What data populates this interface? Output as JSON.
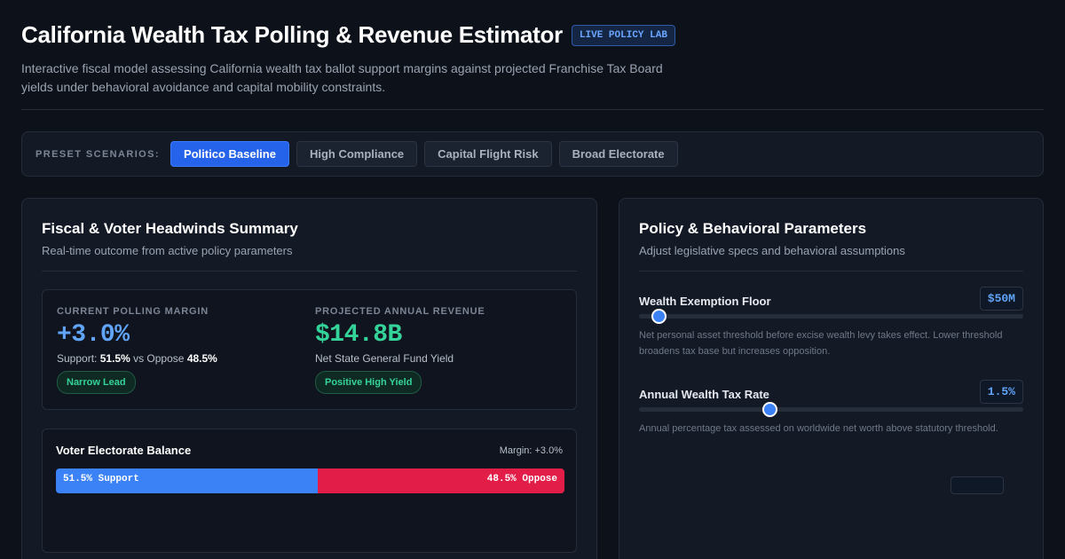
{
  "header": {
    "title": "California Wealth Tax Polling & Revenue Estimator",
    "badge": "LIVE POLICY LAB",
    "subtitle": "Interactive fiscal model assessing California wealth tax ballot support margins against projected Franchise Tax Board yields under behavioral avoidance and capital mobility constraints."
  },
  "presets": {
    "label": "PRESET SCENARIOS:",
    "items": [
      {
        "label": "Politico Baseline",
        "active": true
      },
      {
        "label": "High Compliance",
        "active": false
      },
      {
        "label": "Capital Flight Risk",
        "active": false
      },
      {
        "label": "Broad Electorate",
        "active": false
      }
    ]
  },
  "summary": {
    "title": "Fiscal & Voter Headwinds Summary",
    "subtitle": "Real-time outcome from active policy parameters",
    "polling": {
      "label": "CURRENT POLLING MARGIN",
      "value": "+3.0%",
      "support_prefix": "Support:",
      "support": "51.5%",
      "vs": "vs Oppose",
      "oppose": "48.5%",
      "badge": "Narrow Lead"
    },
    "revenue": {
      "label": "PROJECTED ANNUAL REVENUE",
      "value": "$14.8B",
      "note": "Net State General Fund Yield",
      "badge": "Positive High Yield"
    },
    "balance": {
      "title": "Voter Electorate Balance",
      "margin": "Margin: +3.0%",
      "support_pct": 51.5,
      "support_label": "51.5% Support",
      "oppose_label": "48.5% Oppose"
    }
  },
  "params": {
    "title": "Policy & Behavioral Parameters",
    "subtitle": "Adjust legislative specs and behavioral assumptions",
    "items": [
      {
        "label": "Wealth Exemption Floor",
        "value": "$50M",
        "level": 0.05,
        "desc": "Net personal asset threshold before excise wealth levy takes effect. Lower threshold broadens tax base but increases opposition."
      },
      {
        "label": "Annual Wealth Tax Rate",
        "value": "1.5%",
        "level": 0.34,
        "desc": "Annual percentage tax assessed on worldwide net worth above statutory threshold."
      }
    ]
  },
  "colors": {
    "accent": "#2563eb",
    "support": "#3b82f6",
    "oppose": "#e11d48",
    "positive": "#34d399"
  }
}
